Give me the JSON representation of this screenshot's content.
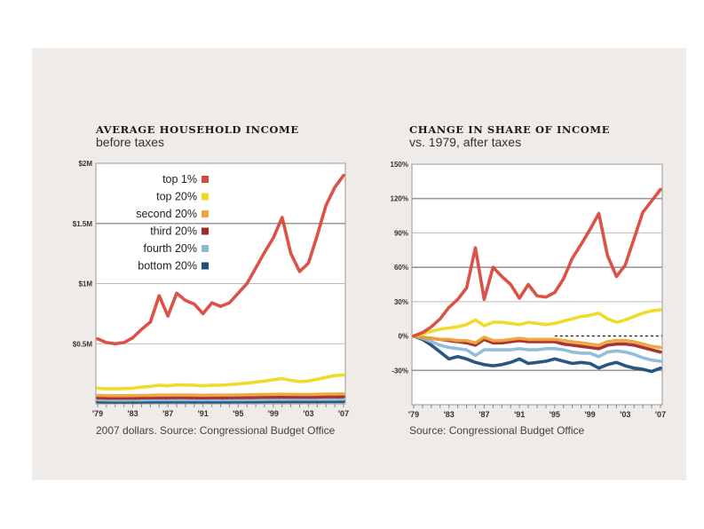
{
  "chart_data": [
    {
      "type": "line",
      "title": "AVERAGE HOUSEHOLD INCOME",
      "subtitle": "before taxes",
      "source": "2007 dollars. Source: Congressional Budget Office",
      "xlabel": "",
      "ylabel": "",
      "x": [
        1979,
        1980,
        1981,
        1982,
        1983,
        1984,
        1985,
        1986,
        1987,
        1988,
        1989,
        1990,
        1991,
        1992,
        1993,
        1994,
        1995,
        1996,
        1997,
        1998,
        1999,
        2000,
        2001,
        2002,
        2003,
        2004,
        2005,
        2006,
        2007
      ],
      "x_tick_labels": [
        "'79",
        "'83",
        "'87",
        "'91",
        "'95",
        "'99",
        "'03",
        "'07"
      ],
      "x_tick_values": [
        1979,
        1983,
        1987,
        1991,
        1995,
        1999,
        2003,
        2007
      ],
      "ylim": [
        0,
        2.0
      ],
      "y_unit": "millions of 2007 dollars",
      "y_tick_labels": [
        "$0.5M",
        "$1M",
        "$1.5M",
        "$2M"
      ],
      "y_tick_values": [
        0.5,
        1.0,
        1.5,
        2.0
      ],
      "grid": true,
      "legend_position": "top-left",
      "series": [
        {
          "name": "top 1%",
          "color": "#d9493c",
          "values": [
            0.54,
            0.51,
            0.5,
            0.51,
            0.55,
            0.62,
            0.68,
            0.9,
            0.73,
            0.92,
            0.86,
            0.83,
            0.75,
            0.84,
            0.81,
            0.84,
            0.92,
            1.0,
            1.13,
            1.26,
            1.38,
            1.55,
            1.25,
            1.1,
            1.17,
            1.4,
            1.65,
            1.8,
            1.9
          ]
        },
        {
          "name": "top 20%",
          "color": "#f0d91f",
          "values": [
            0.13,
            0.125,
            0.125,
            0.127,
            0.13,
            0.14,
            0.145,
            0.155,
            0.15,
            0.158,
            0.157,
            0.155,
            0.15,
            0.155,
            0.156,
            0.16,
            0.165,
            0.172,
            0.18,
            0.19,
            0.2,
            0.21,
            0.195,
            0.185,
            0.19,
            0.205,
            0.22,
            0.235,
            0.24
          ]
        },
        {
          "name": "second 20%",
          "color": "#eda43a",
          "values": [
            0.07,
            0.069,
            0.068,
            0.068,
            0.069,
            0.07,
            0.071,
            0.072,
            0.072,
            0.073,
            0.073,
            0.072,
            0.071,
            0.072,
            0.072,
            0.073,
            0.074,
            0.075,
            0.076,
            0.078,
            0.079,
            0.08,
            0.079,
            0.078,
            0.078,
            0.079,
            0.081,
            0.082,
            0.083
          ]
        },
        {
          "name": "third 20%",
          "color": "#a3292a",
          "values": [
            0.05,
            0.049,
            0.048,
            0.048,
            0.049,
            0.05,
            0.05,
            0.051,
            0.051,
            0.052,
            0.052,
            0.051,
            0.05,
            0.051,
            0.051,
            0.052,
            0.052,
            0.053,
            0.054,
            0.055,
            0.056,
            0.057,
            0.056,
            0.056,
            0.056,
            0.057,
            0.058,
            0.058,
            0.059
          ]
        },
        {
          "name": "fourth 20%",
          "color": "#8db9d8",
          "values": [
            0.033,
            0.032,
            0.031,
            0.031,
            0.032,
            0.032,
            0.033,
            0.033,
            0.033,
            0.034,
            0.034,
            0.033,
            0.033,
            0.033,
            0.033,
            0.034,
            0.034,
            0.035,
            0.035,
            0.036,
            0.037,
            0.038,
            0.037,
            0.037,
            0.037,
            0.037,
            0.038,
            0.038,
            0.039
          ]
        },
        {
          "name": "bottom 20%",
          "color": "#1f4e79",
          "values": [
            0.016,
            0.015,
            0.015,
            0.015,
            0.015,
            0.015,
            0.016,
            0.016,
            0.016,
            0.016,
            0.017,
            0.016,
            0.016,
            0.016,
            0.016,
            0.016,
            0.017,
            0.017,
            0.017,
            0.018,
            0.018,
            0.019,
            0.018,
            0.018,
            0.018,
            0.018,
            0.019,
            0.019,
            0.019
          ]
        }
      ]
    },
    {
      "type": "line",
      "title": "CHANGE IN SHARE OF INCOME",
      "subtitle": "vs. 1979, after taxes",
      "source": "Source: Congressional Budget Office",
      "xlabel": "",
      "ylabel": "",
      "x": [
        1979,
        1980,
        1981,
        1982,
        1983,
        1984,
        1985,
        1986,
        1987,
        1988,
        1989,
        1990,
        1991,
        1992,
        1993,
        1994,
        1995,
        1996,
        1997,
        1998,
        1999,
        2000,
        2001,
        2002,
        2003,
        2004,
        2005,
        2006,
        2007
      ],
      "x_tick_labels": [
        "'79",
        "'83",
        "'87",
        "'91",
        "'95",
        "'99",
        "'03",
        "'07"
      ],
      "x_tick_values": [
        1979,
        1983,
        1987,
        1991,
        1995,
        1999,
        2003,
        2007
      ],
      "ylim": [
        -60,
        150
      ],
      "y_unit": "percent change",
      "y_tick_labels": [
        "-30%",
        "0%",
        "30%",
        "60%",
        "90%",
        "120%",
        "150%"
      ],
      "y_tick_values": [
        -30,
        0,
        30,
        60,
        90,
        120,
        150
      ],
      "grid": true,
      "zero_line": "dashed",
      "series": [
        {
          "name": "top 1%",
          "color": "#d9493c",
          "values": [
            0,
            3,
            8,
            15,
            25,
            32,
            42,
            77,
            32,
            60,
            52,
            45,
            33,
            45,
            35,
            34,
            38,
            50,
            68,
            80,
            93,
            107,
            70,
            52,
            62,
            85,
            108,
            118,
            128
          ]
        },
        {
          "name": "top 20%",
          "color": "#f0d91f",
          "values": [
            0,
            2,
            4,
            6,
            7,
            8,
            10,
            14,
            9,
            12,
            12,
            11,
            10,
            12,
            11,
            10,
            11,
            13,
            15,
            17,
            18,
            20,
            15,
            12,
            14,
            17,
            20,
            22,
            23
          ]
        },
        {
          "name": "second 20%",
          "color": "#eda43a",
          "values": [
            0,
            -1,
            -2,
            -3,
            -3,
            -4,
            -4,
            -6,
            -1,
            -4,
            -4,
            -3,
            -2,
            -3,
            -3,
            -3,
            -3,
            -4,
            -5,
            -6,
            -7,
            -8,
            -5,
            -4,
            -4,
            -5,
            -7,
            -9,
            -10
          ]
        },
        {
          "name": "third 20%",
          "color": "#a3292a",
          "values": [
            0,
            -1,
            -2,
            -3,
            -4,
            -5,
            -6,
            -8,
            -3,
            -6,
            -6,
            -5,
            -4,
            -5,
            -5,
            -5,
            -5,
            -7,
            -8,
            -9,
            -10,
            -11,
            -8,
            -7,
            -7,
            -8,
            -10,
            -12,
            -14
          ]
        },
        {
          "name": "fourth 20%",
          "color": "#8db9d8",
          "values": [
            0,
            -2,
            -5,
            -8,
            -10,
            -11,
            -12,
            -17,
            -12,
            -12,
            -12,
            -12,
            -11,
            -12,
            -12,
            -11,
            -11,
            -12,
            -14,
            -15,
            -15,
            -18,
            -14,
            -13,
            -14,
            -16,
            -19,
            -21,
            -22
          ]
        },
        {
          "name": "bottom 20%",
          "color": "#1f4e79",
          "values": [
            0,
            -3,
            -8,
            -14,
            -20,
            -18,
            -20,
            -23,
            -25,
            -26,
            -25,
            -23,
            -20,
            -24,
            -23,
            -22,
            -20,
            -22,
            -24,
            -23,
            -24,
            -28,
            -25,
            -23,
            -26,
            -28,
            -29,
            -31,
            -28
          ]
        }
      ]
    }
  ]
}
